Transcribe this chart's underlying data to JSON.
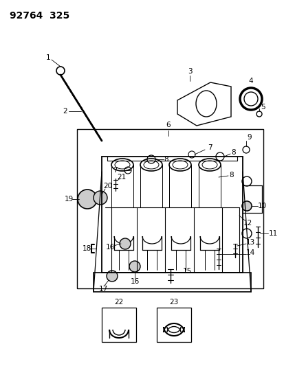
{
  "title": "92764  325",
  "bg_color": "#ffffff",
  "line_color": "#000000",
  "fig_width": 4.14,
  "fig_height": 5.33,
  "dpi": 100
}
